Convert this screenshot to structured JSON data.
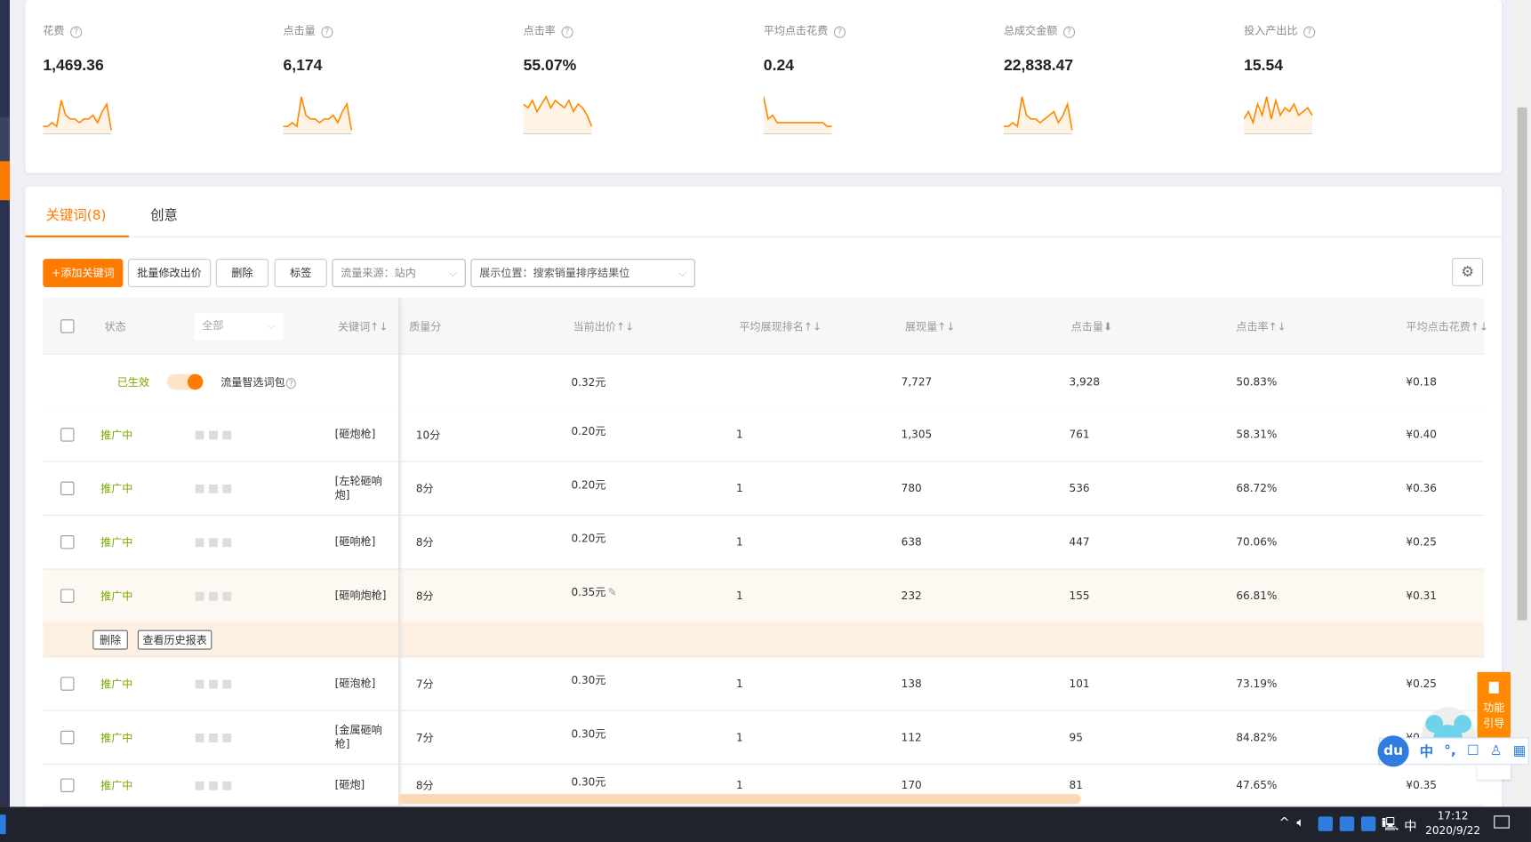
{
  "metrics": [
    {
      "label": "花费",
      "value": "1,469.36",
      "spark": [
        2,
        2,
        3,
        2,
        9,
        5,
        4,
        4,
        3,
        4,
        4,
        5,
        3,
        6,
        8,
        1
      ]
    },
    {
      "label": "点击量",
      "value": "6,174",
      "spark": [
        2,
        2,
        3,
        2,
        10,
        5,
        4,
        4,
        3,
        4,
        4,
        5,
        3,
        6,
        8,
        1
      ]
    },
    {
      "label": "点击率",
      "value": "55.07%",
      "spark": [
        8,
        7,
        9,
        6,
        8,
        10,
        7,
        9,
        8,
        7,
        9,
        6,
        8,
        7,
        5,
        2
      ]
    },
    {
      "label": "平均点击花费",
      "value": "0.24",
      "spark": [
        10,
        4,
        5,
        3,
        3,
        3,
        3,
        3,
        3,
        3,
        3,
        3,
        3,
        3,
        2,
        2
      ]
    },
    {
      "label": "总成交金额",
      "value": "22,838.47",
      "spark": [
        2,
        2,
        3,
        2,
        10,
        5,
        4,
        4,
        3,
        4,
        5,
        6,
        3,
        5,
        8,
        1
      ]
    },
    {
      "label": "投入产出比",
      "value": "15.54",
      "spark": [
        4,
        6,
        3,
        8,
        5,
        10,
        4,
        9,
        5,
        7,
        6,
        8,
        5,
        6,
        7,
        5
      ]
    }
  ],
  "tabs": [
    {
      "label": "关键词(8)",
      "active": true
    },
    {
      "label": "创意",
      "active": false
    }
  ],
  "toolbar": {
    "add": "+添加关键词",
    "batch": "批量修改出价",
    "delete": "删除",
    "tag": "标签",
    "source": "流量来源：站内",
    "position": "展示位置：搜索销量排序结果位"
  },
  "table": {
    "headers": {
      "status": "状态",
      "filter": "全部",
      "keyword": "关键词↑↓",
      "quality": "质量分",
      "bid": "当前出价↑↓",
      "rank": "平均展现排名↑↓",
      "impressions": "展现量↑↓",
      "clicks": "点击量⬇",
      "ctr": "点击率↑↓",
      "cpc": "平均点击花费↑↓"
    },
    "summary": {
      "status": "已生效",
      "pack": "流量智选词包",
      "bid": "0.32元",
      "impressions": "7,727",
      "clicks": "3,928",
      "ctr": "50.83%",
      "cpc": "¥0.18"
    },
    "rows": [
      {
        "status": "推广中",
        "keyword": "[砸炮枪]",
        "quality": "10分",
        "bid": "0.20元",
        "rank": "1",
        "impressions": "1,305",
        "clicks": "761",
        "ctr": "58.31%",
        "cpc": "¥0.40"
      },
      {
        "status": "推广中",
        "keyword": "[左轮砸响炮]",
        "quality": "8分",
        "bid": "0.20元",
        "rank": "1",
        "impressions": "780",
        "clicks": "536",
        "ctr": "68.72%",
        "cpc": "¥0.36"
      },
      {
        "status": "推广中",
        "keyword": "[砸响枪]",
        "quality": "8分",
        "bid": "0.20元",
        "rank": "1",
        "impressions": "638",
        "clicks": "447",
        "ctr": "70.06%",
        "cpc": "¥0.25"
      },
      {
        "status": "推广中",
        "keyword": "[砸响炮枪]",
        "quality": "8分",
        "bid": "0.35元",
        "rank": "1",
        "impressions": "232",
        "clicks": "155",
        "ctr": "66.81%",
        "cpc": "¥0.31"
      },
      {
        "status": "推广中",
        "keyword": "[砸泡枪]",
        "quality": "7分",
        "bid": "0.30元",
        "rank": "1",
        "impressions": "138",
        "clicks": "101",
        "ctr": "73.19%",
        "cpc": "¥0.25"
      },
      {
        "status": "推广中",
        "keyword": "[金属砸响枪]",
        "quality": "7分",
        "bid": "0.30元",
        "rank": "1",
        "impressions": "112",
        "clicks": "95",
        "ctr": "84.82%",
        "cpc": "¥0.("
      },
      {
        "status": "推广中",
        "keyword": "[砸炮]",
        "quality": "8分",
        "bid": "0.30元",
        "rank": "1",
        "impressions": "170",
        "clicks": "81",
        "ctr": "47.65%",
        "cpc": "¥0.35"
      }
    ],
    "row_actions": {
      "delete": "删除",
      "history": "查看历史报表"
    }
  },
  "guide": {
    "label1": "功能",
    "label2": "引导"
  },
  "ime": {
    "logo": "du",
    "mode": "中",
    "punct": "°,"
  },
  "taskbar": {
    "lang": "中",
    "time": "17:12",
    "date": "2020/9/22"
  },
  "colors": {
    "accent": "#ff7a00",
    "active_status": "#7aa800"
  }
}
